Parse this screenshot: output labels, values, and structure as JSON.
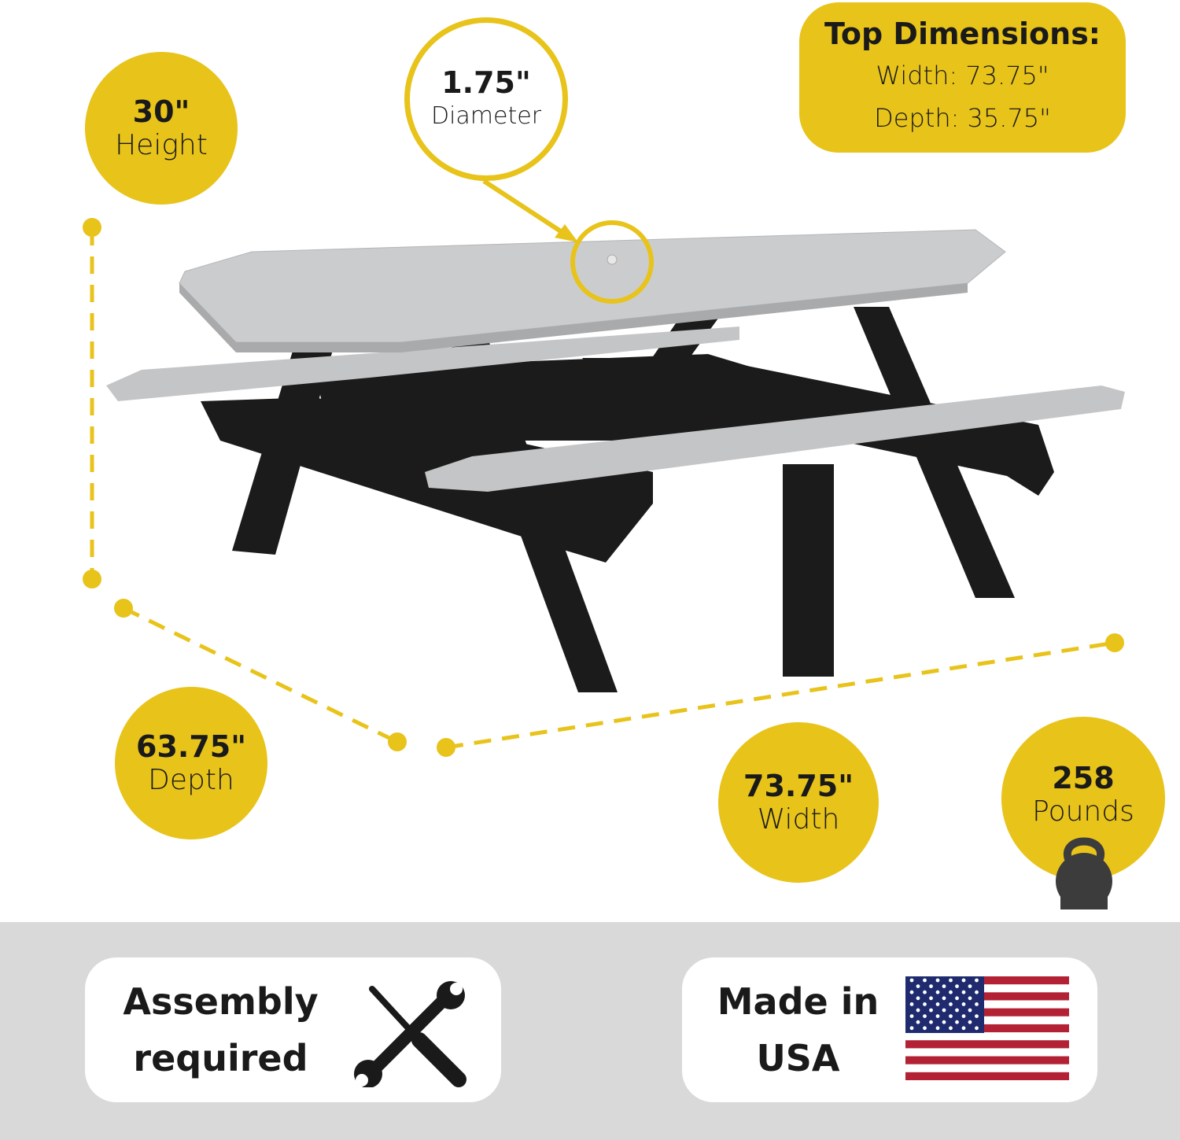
{
  "colors": {
    "accent": "#e8c31a",
    "tabletop": "#c9cacc",
    "frame": "#1b1b1b",
    "band": "#d9d9d9"
  },
  "height": {
    "value": "30\"",
    "label": "Height"
  },
  "diameter": {
    "value": "1.75\"",
    "label": "Diameter"
  },
  "top_dimensions": {
    "title": "Top Dimensions:",
    "width": "Width: 73.75\"",
    "depth": "Depth: 35.75\""
  },
  "depth": {
    "value": "63.75\"",
    "label": "Depth"
  },
  "width": {
    "value": "73.75\"",
    "label": "Width"
  },
  "weight": {
    "value": "258",
    "label": "Pounds",
    "icon": "kettlebell-icon"
  },
  "assembly": {
    "line1": "Assembly",
    "line2": "required",
    "icon": "wrench-screwdriver-icon"
  },
  "made_in": {
    "line1": "Made in",
    "line2": "USA",
    "icon": "us-flag-icon"
  }
}
